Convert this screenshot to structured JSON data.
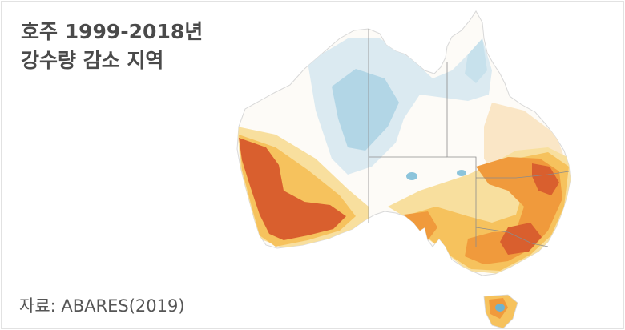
{
  "title": {
    "line1": "호주 1999-2018년",
    "line2": "강수량 감소 지역"
  },
  "source": "자료: ABARES(2019)",
  "map": {
    "region": "Australia",
    "colors": {
      "strong_decline": "#d95f2e",
      "decline": "#f09a3c",
      "moderate_decline": "#f6c25d",
      "slight_decline": "#f8df9e",
      "neutral": "#ffffff",
      "slight_increase": "#dbeaf1",
      "increase": "#b2d6e6",
      "strong_increase": "#6fb3d0",
      "state_border": "#8c8c8c"
    }
  }
}
